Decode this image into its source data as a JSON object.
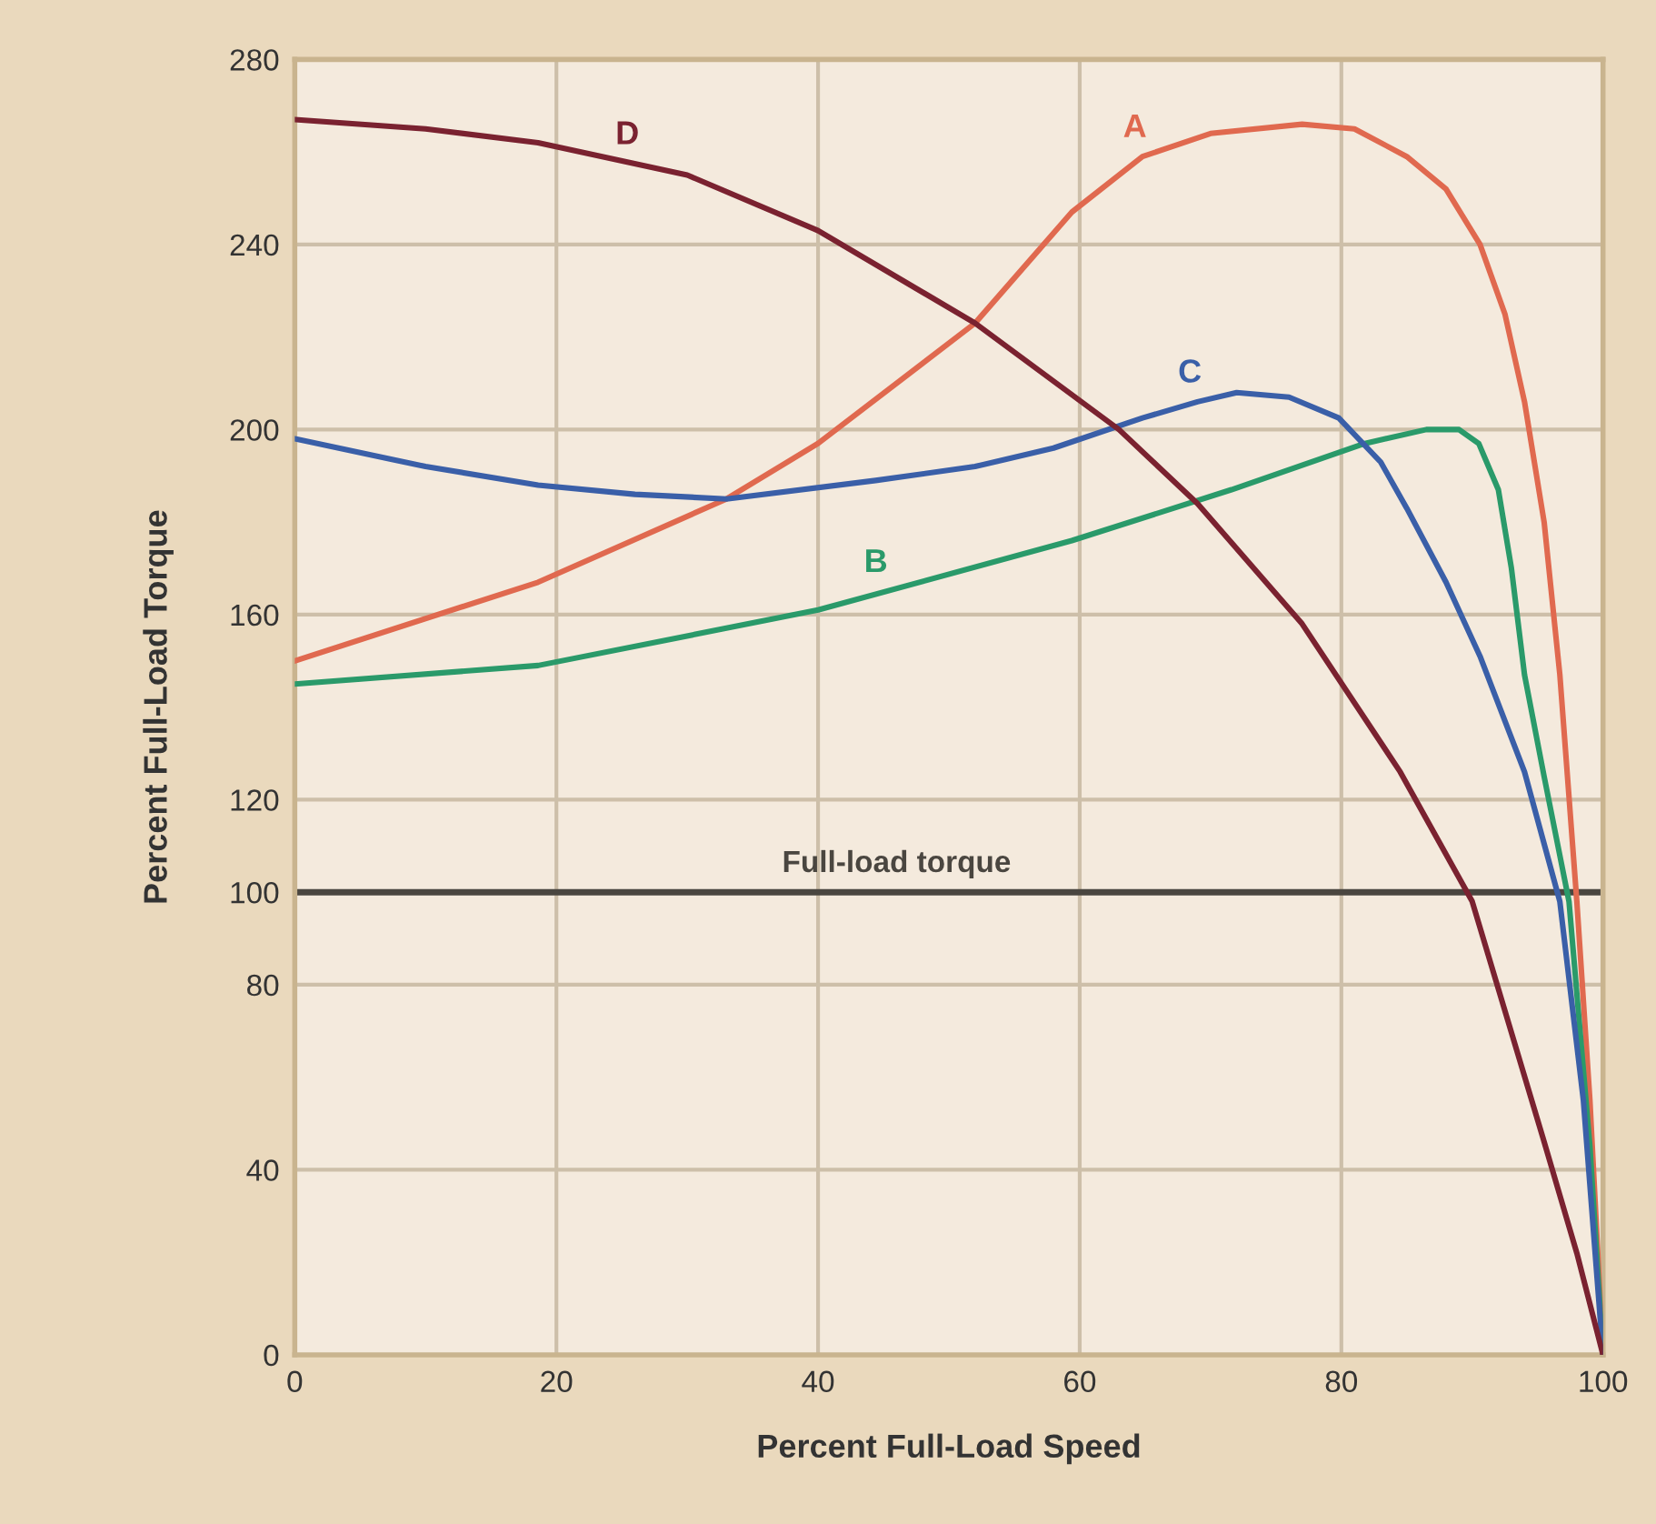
{
  "chart_data": {
    "type": "line",
    "xlabel": "Percent Full-Load Speed",
    "ylabel": "Percent Full-Load Torque",
    "xlim": [
      0,
      100
    ],
    "ylim": [
      0,
      280
    ],
    "xticks": [
      0,
      20,
      40,
      60,
      80,
      100
    ],
    "yticks": [
      0,
      40,
      80,
      100,
      120,
      160,
      200,
      240,
      280
    ],
    "grid": true,
    "legend": false,
    "marker": "none",
    "line_style": "solid",
    "series": [
      {
        "color": "#e0694f",
        "x": [
          0,
          18.6,
          33,
          40,
          52,
          59.4,
          64.8,
          70,
          77,
          81,
          85,
          88,
          90.6,
          92.5,
          94,
          95.5,
          96.7,
          98,
          99,
          100
        ],
        "values": [
          150,
          167,
          185,
          197,
          223,
          247,
          259,
          264,
          266,
          265,
          259,
          252,
          240,
          225,
          206,
          180,
          147,
          98,
          55,
          0
        ]
      },
      {
        "color": "#2a9a6a",
        "x": [
          0,
          18.6,
          40,
          59.4,
          71.6,
          81.8,
          86.5,
          89,
          90.5,
          92,
          93,
          94,
          95.5,
          97.4,
          99,
          100
        ],
        "values": [
          145,
          149,
          161,
          176,
          187,
          197,
          200,
          200,
          197,
          187,
          170,
          147,
          125,
          98,
          45,
          0
        ]
      },
      {
        "color": "#3a5fa8",
        "x": [
          0,
          10,
          18.6,
          26,
          33,
          44.4,
          52,
          58,
          64.8,
          69,
          72,
          76,
          79.8,
          83,
          85,
          88,
          90.6,
          94,
          96.7,
          98.5,
          100
        ],
        "values": [
          198,
          192,
          188,
          186,
          185,
          189,
          192,
          196,
          202.5,
          206,
          208,
          207,
          202.5,
          193,
          183,
          167,
          151,
          126,
          98,
          55,
          0
        ]
      },
      {
        "color": "#7a2230",
        "x": [
          0,
          10,
          18.6,
          30,
          40,
          52,
          63,
          69,
          77,
          84.5,
          90,
          95.4,
          98,
          100
        ],
        "values": [
          267,
          265,
          262,
          255,
          243,
          223,
          200,
          184,
          158,
          126,
          98,
          47,
          22,
          0
        ]
      }
    ],
    "ref_lines": [
      {
        "axis": "y",
        "value": 100,
        "label": "Full-load torque",
        "color": "#4a4640"
      }
    ],
    "annotations": [
      {
        "text": "A",
        "x": 64.8,
        "y": 259
      },
      {
        "text": "B",
        "x": 45,
        "y": 165
      },
      {
        "text": "C",
        "x": 69,
        "y": 206
      },
      {
        "text": "D",
        "x": 26,
        "y": 257.5
      }
    ]
  }
}
